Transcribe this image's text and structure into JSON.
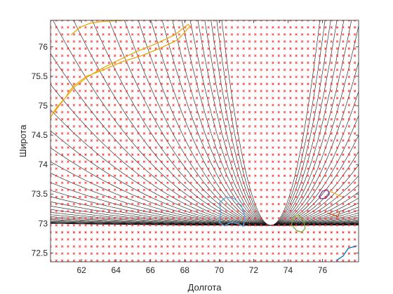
{
  "chart_data": {
    "type": "scatter",
    "title": "",
    "xlabel": "Долгота",
    "ylabel": "Широта",
    "xlim": [
      60.2,
      78.1
    ],
    "ylim": [
      72.35,
      76.45
    ],
    "xticks": [
      62,
      64,
      66,
      68,
      70,
      72,
      74,
      76
    ],
    "yticks": [
      72.5,
      73,
      73.5,
      74,
      74.5,
      75,
      75.5,
      76
    ],
    "xtick_labels": [
      "62",
      "64",
      "66",
      "68",
      "70",
      "72",
      "74",
      "76"
    ],
    "ytick_labels": [
      "72.5",
      "73",
      "73.5",
      "74",
      "74.5",
      "75",
      "75.5",
      "76"
    ],
    "grid_points": {
      "marker": "x",
      "color": "#ff3030",
      "x_start": 60.2,
      "x_step": 0.34,
      "x_count": 53,
      "y_start": 72.37,
      "y_step": 0.12,
      "y_count": 35
    },
    "contours": {
      "color": "#111111",
      "apex_lon": 73.0,
      "apex_lat": 72.97,
      "count": 40
    },
    "coastlines": [
      {
        "color": "#e8a80c",
        "lon": [
          60.2,
          60.5,
          60.8,
          61.1,
          61.3,
          61.6,
          62.3,
          63.2,
          64.4,
          65.5,
          66.6,
          67.6,
          68.0,
          68.3,
          68.2,
          67.4,
          66.3,
          65.2,
          64.2,
          63.3,
          62.4,
          61.6,
          61.1,
          60.7,
          60.5,
          60.3,
          60.2
        ],
        "lat": [
          74.8,
          74.95,
          75.05,
          75.15,
          75.25,
          75.35,
          75.5,
          75.6,
          75.75,
          75.85,
          75.98,
          76.12,
          76.25,
          76.35,
          76.38,
          76.2,
          76.05,
          75.92,
          75.78,
          75.65,
          75.5,
          75.32,
          75.15,
          75.0,
          74.92,
          74.85,
          74.8
        ]
      },
      {
        "color": "#e8a80c",
        "lon": [
          61.4,
          61.9,
          62.5,
          63.2,
          63.9,
          64.5
        ],
        "lat": [
          76.2,
          76.33,
          76.4,
          76.43,
          76.44,
          76.45
        ]
      },
      {
        "color": "#5aa8e0",
        "lon": [
          70.0,
          70.4,
          70.9,
          71.3,
          71.5,
          71.4,
          71.1,
          70.7,
          70.3,
          70.0,
          70.1,
          70.0
        ],
        "lat": [
          73.35,
          73.45,
          73.42,
          73.3,
          73.1,
          72.95,
          73.0,
          73.02,
          72.96,
          73.02,
          73.2,
          73.35
        ]
      },
      {
        "color": "#77ac30",
        "lon": [
          74.3,
          74.6,
          74.9,
          75.0,
          74.8,
          74.5,
          74.2,
          74.3
        ],
        "lat": [
          73.1,
          73.15,
          73.05,
          72.92,
          72.85,
          72.88,
          72.98,
          73.1
        ]
      },
      {
        "color": "#7e2f8e",
        "lon": [
          75.8,
          76.0,
          76.3,
          76.4,
          76.2,
          75.9,
          75.8
        ],
        "lat": [
          73.45,
          73.55,
          73.57,
          73.5,
          73.43,
          73.42,
          73.45
        ]
      },
      {
        "color": "#edb120",
        "lon": [
          76.4,
          76.8,
          77.1
        ],
        "lat": [
          73.55,
          73.5,
          73.45
        ]
      },
      {
        "color": "#d95319",
        "lon": [
          76.3,
          76.6,
          76.9,
          77.0
        ],
        "lat": [
          73.18,
          73.15,
          73.12,
          73.2
        ]
      },
      {
        "color": "#0072bd",
        "lon": [
          76.8,
          77.2,
          77.5,
          78.0
        ],
        "lat": [
          72.37,
          72.45,
          72.58,
          72.62
        ]
      }
    ]
  }
}
